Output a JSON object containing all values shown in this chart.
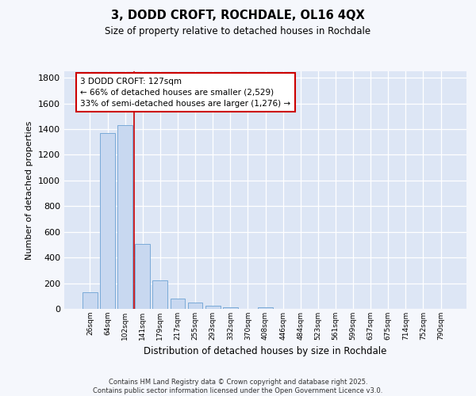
{
  "title": "3, DODD CROFT, ROCHDALE, OL16 4QX",
  "subtitle": "Size of property relative to detached houses in Rochdale",
  "xlabel": "Distribution of detached houses by size in Rochdale",
  "ylabel": "Number of detached properties",
  "categories": [
    "26sqm",
    "64sqm",
    "102sqm",
    "141sqm",
    "179sqm",
    "217sqm",
    "255sqm",
    "293sqm",
    "332sqm",
    "370sqm",
    "408sqm",
    "446sqm",
    "484sqm",
    "523sqm",
    "561sqm",
    "599sqm",
    "637sqm",
    "675sqm",
    "714sqm",
    "752sqm",
    "790sqm"
  ],
  "values": [
    130,
    1370,
    1430,
    505,
    225,
    80,
    50,
    27,
    10,
    0,
    15,
    0,
    0,
    0,
    0,
    0,
    0,
    0,
    0,
    0,
    0
  ],
  "bar_color": "#c8d8f0",
  "bar_edge_color": "#7aaad8",
  "vline_x_index": 2.5,
  "vline_color": "#cc0000",
  "annotation_line1": "3 DODD CROFT: 127sqm",
  "annotation_line2": "← 66% of detached houses are smaller (2,529)",
  "annotation_line3": "33% of semi-detached houses are larger (1,276) →",
  "annotation_box_color": "#cc0000",
  "annotation_bg_color": "#ffffff",
  "ylim": [
    0,
    1850
  ],
  "yticks": [
    0,
    200,
    400,
    600,
    800,
    1000,
    1200,
    1400,
    1600,
    1800
  ],
  "background_color": "#f5f7fc",
  "plot_bg_color": "#dde6f5",
  "grid_color": "#ffffff",
  "footer_line1": "Contains HM Land Registry data © Crown copyright and database right 2025.",
  "footer_line2": "Contains public sector information licensed under the Open Government Licence v3.0."
}
